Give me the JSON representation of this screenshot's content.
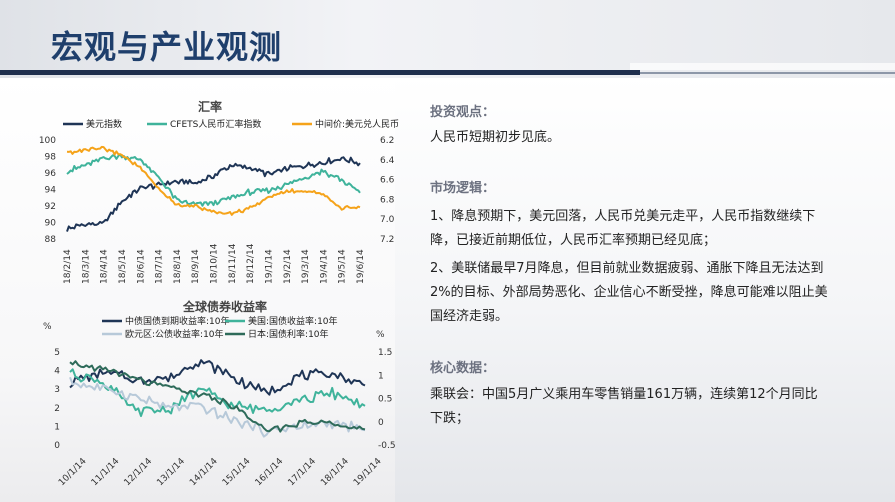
{
  "page": {
    "title": "宏观与产业观测"
  },
  "right_panel": {
    "sections": [
      {
        "heading": "投资观点：",
        "paragraphs": [
          "人民币短期初步见底。"
        ]
      },
      {
        "heading": "市场逻辑：",
        "paragraphs": [
          "1、降息预期下，美元回落，人民币兑美元走平，人民币指数继续下降，已接近前期低位，人民币汇率预期已经见底；",
          "2、美联储最早7月降息，但目前就业数据疲弱、通胀下降且无法达到2%的目标、外部局势恶化、企业信心不断受挫，降息可能难以阻止美国经济走弱。"
        ]
      },
      {
        "heading": "核心数据：",
        "paragraphs": [
          "乘联会：中国5月广义乘用车零售销量161万辆，连续第12个月同比下跌；"
        ]
      }
    ]
  },
  "colors": {
    "dark_navy": "#1f3556",
    "teal": "#3fb39b",
    "orange": "#f5a31a",
    "deep_green": "#2e6b5a",
    "title_blue": "#1f3f6c"
  },
  "chart_data": [
    {
      "type": "line",
      "title": "汇率",
      "x": [
        "18/2/14",
        "18/3/14",
        "18/4/14",
        "18/5/14",
        "18/6/14",
        "18/7/14",
        "18/8/14",
        "18/9/14",
        "18/10/14",
        "18/11/14",
        "18/12/14",
        "19/1/14",
        "19/2/14",
        "19/3/14",
        "19/4/14",
        "19/5/14",
        "19/6/14"
      ],
      "left_axis": {
        "ticks": [
          "100",
          "98",
          "96",
          "94",
          "92",
          "90",
          "88"
        ],
        "ylim": [
          88,
          100
        ]
      },
      "right_axis": {
        "ticks": [
          "6.2",
          "6.4",
          "6.6",
          "6.8",
          "7.0",
          "7.2"
        ],
        "ylim": [
          6.2,
          7.2
        ],
        "inverted": true
      },
      "legend_position": "top",
      "series": [
        {
          "name": "美元指数",
          "axis": "left",
          "color": "#1f3556",
          "values": [
            89.2,
            89.8,
            89.9,
            92.6,
            94.2,
            94.5,
            95.0,
            94.8,
            95.7,
            96.9,
            96.6,
            95.8,
            96.5,
            96.9,
            97.3,
            97.8,
            97.2
          ]
        },
        {
          "name": "CFETS人民币汇率指数",
          "axis": "left",
          "color": "#3fb39b",
          "values": [
            96.2,
            96.9,
            97.8,
            98.1,
            97.6,
            95.4,
            92.6,
            92.2,
            92.3,
            93.1,
            93.7,
            93.9,
            94.6,
            95.5,
            96.2,
            95.2,
            93.6
          ]
        },
        {
          "name": "中间价:美元兑人民币",
          "axis": "right",
          "color": "#f5a31a",
          "values": [
            6.33,
            6.3,
            6.29,
            6.35,
            6.48,
            6.69,
            6.85,
            6.86,
            6.93,
            6.94,
            6.89,
            6.78,
            6.72,
            6.71,
            6.74,
            6.89,
            6.88
          ]
        }
      ]
    },
    {
      "type": "line",
      "title": "全球债券收益率",
      "x": [
        "10/1/14",
        "11/1/14",
        "12/1/14",
        "13/1/14",
        "14/1/14",
        "15/1/14",
        "16/1/14",
        "17/1/14",
        "18/1/14",
        "19/1/14"
      ],
      "left_axis": {
        "unit": "%",
        "ticks": [
          "5",
          "4",
          "3",
          "2",
          "1",
          "0"
        ],
        "ylim": [
          0,
          5
        ]
      },
      "right_axis": {
        "unit": "%",
        "ticks": [
          "1.5",
          "1",
          "0.5",
          "0",
          "-0.5"
        ],
        "ylim": [
          -0.5,
          1.5
        ]
      },
      "legend_position": "top",
      "series": [
        {
          "name": "中债国债到期收益率:10年",
          "axis": "left",
          "color": "#1f3556",
          "values": [
            3.3,
            3.9,
            3.5,
            3.6,
            4.6,
            3.6,
            2.8,
            3.7,
            3.8,
            3.2
          ]
        },
        {
          "name": "美国:国债收益率:10年",
          "axis": "left",
          "color": "#3fb39b",
          "values": [
            3.9,
            3.4,
            1.8,
            1.9,
            3.0,
            2.1,
            1.9,
            2.4,
            2.8,
            2.1
          ]
        },
        {
          "name": "欧元区:公债收益率:10年",
          "axis": "left",
          "color": "#b7c9d9",
          "values": [
            3.4,
            3.0,
            2.6,
            2.0,
            2.1,
            1.3,
            0.7,
            1.0,
            1.2,
            0.8
          ]
        },
        {
          "name": "日本:国债利率:10年",
          "axis": "right",
          "color": "#2e6b5a",
          "values": [
            1.3,
            1.2,
            1.0,
            0.8,
            0.65,
            0.4,
            -0.15,
            0.05,
            0.05,
            -0.1
          ]
        }
      ]
    }
  ]
}
